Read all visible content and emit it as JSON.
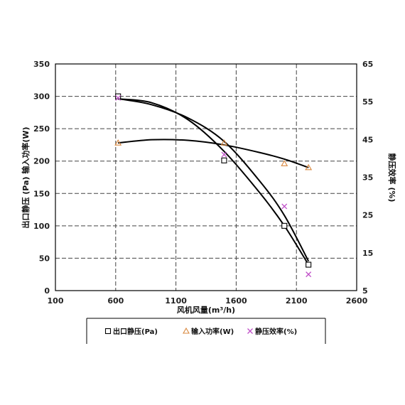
{
  "chart_data": {
    "type": "scatter",
    "xlabel": "风机风量(m³/h)",
    "ylabel_left": "出口静压 (Pa) 输入功率(W)",
    "ylabel_right": "静压效率 (%)",
    "xlim": [
      100,
      2600
    ],
    "ylim_left": [
      0,
      350
    ],
    "ylim_right": [
      5,
      65
    ],
    "xticks": [
      "100",
      "600",
      "1100",
      "1600",
      "2100",
      "2600"
    ],
    "yticks_left": [
      "0",
      "50",
      "100",
      "150",
      "200",
      "250",
      "300",
      "350"
    ],
    "yticks_right": [
      "5",
      "15",
      "25",
      "35",
      "45",
      "55",
      "65"
    ],
    "grid": true,
    "legend_position": "bottom",
    "series": [
      {
        "name": "出口静压(Pa)",
        "axis": "left",
        "marker": "square",
        "color": "#000000",
        "x": [
          620,
          1500,
          2000,
          2200
        ],
        "y": [
          300,
          201,
          100,
          40
        ]
      },
      {
        "name": "输入功率(W)",
        "axis": "left",
        "marker": "triangle",
        "color": "#d9883f",
        "x": [
          620,
          1500,
          2000,
          2200
        ],
        "y": [
          228,
          228,
          196,
          190
        ]
      },
      {
        "name": "静压效率(%)",
        "axis": "right",
        "marker": "x",
        "color": "#c050c8",
        "x": [
          620,
          1500,
          2000,
          2200
        ],
        "y": [
          56,
          41,
          27.3,
          9.3
        ]
      }
    ],
    "fits": [
      {
        "axis": "left",
        "points": [
          [
            620,
            296
          ],
          [
            900,
            290
          ],
          [
            1200,
            264
          ],
          [
            1500,
            215
          ],
          [
            1800,
            150
          ],
          [
            2000,
            100
          ],
          [
            2200,
            40
          ]
        ]
      },
      {
        "axis": "left",
        "points": [
          [
            620,
            228
          ],
          [
            900,
            233
          ],
          [
            1200,
            232
          ],
          [
            1500,
            225
          ],
          [
            1800,
            213
          ],
          [
            2000,
            203
          ],
          [
            2200,
            190
          ]
        ]
      },
      {
        "axis": "right",
        "points": [
          [
            620,
            55.8
          ],
          [
            900,
            54.2
          ],
          [
            1200,
            50.7
          ],
          [
            1500,
            44.5
          ],
          [
            1800,
            33.8
          ],
          [
            2000,
            24.9
          ],
          [
            2200,
            12.8
          ]
        ]
      }
    ]
  }
}
